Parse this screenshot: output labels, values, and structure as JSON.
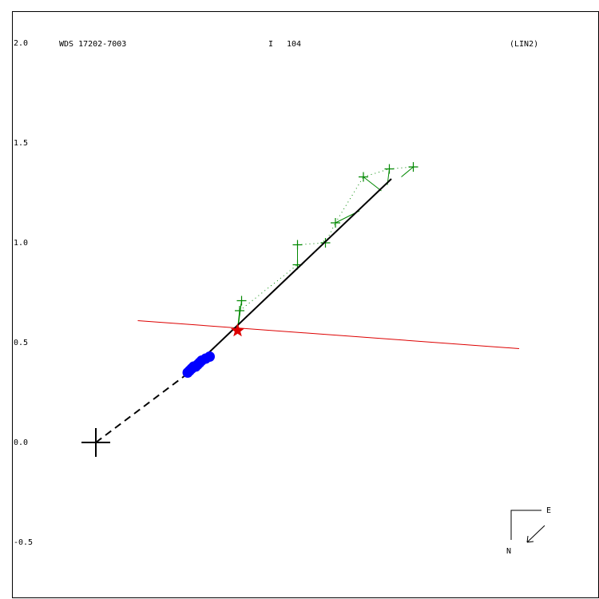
{
  "header": {
    "designation": "WDS 17202-7003",
    "grade_label": "I",
    "count": "104",
    "method": "(LIN2)"
  },
  "compass": {
    "east_label": "E",
    "north_label": "N"
  },
  "colors": {
    "axes": "#000000",
    "observations": "#0000ff",
    "measurements": "#008800",
    "node_line": "#dd0000",
    "star_marker": "#dd0000",
    "orbit_line": "#000000"
  },
  "chart_data": {
    "type": "scatter",
    "title": "",
    "xlabel": "",
    "ylabel": "",
    "ylim": [
      -0.78,
      2.16
    ],
    "y_ticks": [
      2.0,
      1.5,
      1.0,
      0.5,
      0.0,
      -0.5
    ],
    "y_tick_labels": [
      "2.0",
      "1.5",
      "1.0",
      "0.5",
      "0.0",
      "-0.5"
    ],
    "origin": [
      0,
      0
    ],
    "linear_fit": {
      "dashed_from": [
        0,
        0
      ],
      "dashed_to": [
        0.44,
        0.33
      ],
      "solid_from": [
        0.44,
        0.33
      ],
      "solid_to": [
        1.48,
        1.32
      ]
    },
    "node_line": {
      "from": [
        0.21,
        0.61
      ],
      "to": [
        2.12,
        0.47
      ]
    },
    "reference_point": [
      0.71,
      0.56
    ],
    "observations": [
      [
        0.46,
        0.35
      ],
      [
        0.47,
        0.36
      ],
      [
        0.48,
        0.37
      ],
      [
        0.49,
        0.38
      ],
      [
        0.5,
        0.38
      ],
      [
        0.51,
        0.39
      ],
      [
        0.52,
        0.4
      ],
      [
        0.53,
        0.41
      ],
      [
        0.55,
        0.42
      ],
      [
        0.57,
        0.43
      ]
    ],
    "measurements": [
      {
        "point": [
          0.73,
          0.71
        ],
        "fit": [
          0.71,
          0.56
        ]
      },
      {
        "point": [
          0.72,
          0.66
        ],
        "fit": [
          0.71,
          0.57
        ]
      },
      {
        "point": [
          1.01,
          0.89
        ],
        "fit": [
          1.01,
          0.87
        ]
      },
      {
        "point": [
          1.01,
          0.99
        ],
        "fit": [
          1.01,
          0.88
        ]
      },
      {
        "point": [
          1.15,
          1.0
        ],
        "fit": [
          1.14,
          1.01
        ]
      },
      {
        "point": [
          1.2,
          1.1
        ],
        "fit": [
          1.32,
          1.16
        ]
      },
      {
        "point": [
          1.34,
          1.33
        ],
        "fit": [
          1.43,
          1.26
        ]
      },
      {
        "point": [
          1.47,
          1.37
        ],
        "fit": [
          1.46,
          1.29
        ]
      },
      {
        "point": [
          1.59,
          1.38
        ],
        "fit": [
          1.53,
          1.33
        ]
      }
    ]
  }
}
